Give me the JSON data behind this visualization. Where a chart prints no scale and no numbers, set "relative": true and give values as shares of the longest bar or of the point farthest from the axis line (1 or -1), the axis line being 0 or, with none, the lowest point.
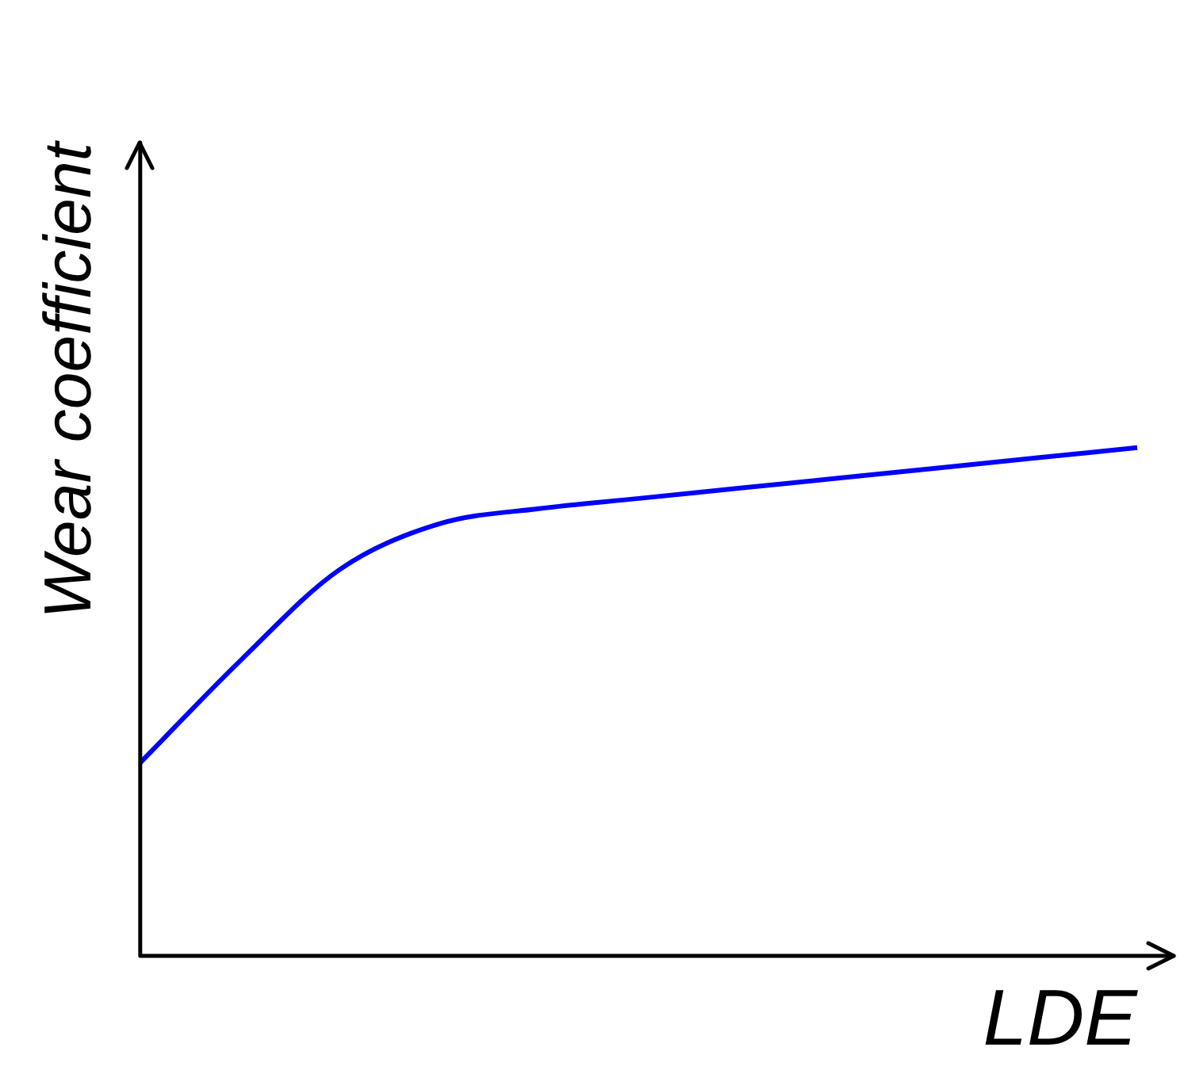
{
  "chart_data": {
    "type": "line",
    "xlabel": "LDE",
    "ylabel": "Wear coefficient",
    "relative": true,
    "color": "#0000ff",
    "marker": "none",
    "grid": false,
    "tick_labels": false,
    "categories": [
      null,
      null,
      null,
      null,
      null,
      null,
      null,
      null,
      null,
      null,
      null
    ],
    "values": [
      0.38,
      0.58,
      0.76,
      0.85,
      0.88,
      0.9,
      0.92,
      0.94,
      0.96,
      0.98,
      1.0
    ]
  }
}
